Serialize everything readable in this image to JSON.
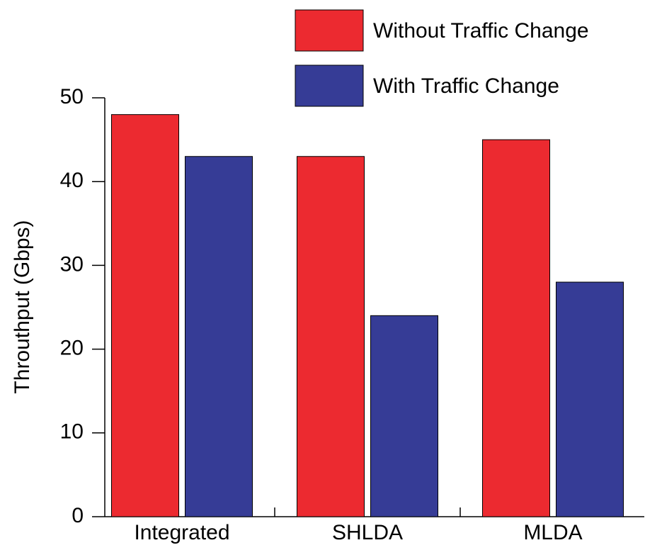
{
  "chart_data": {
    "type": "bar",
    "y_label": "Throuthput (Gbps)",
    "categories": [
      "Integrated",
      "SHLDA",
      "MLDA"
    ],
    "series": [
      {
        "name": "Without Traffic Change",
        "color": "#ec2a30",
        "values": [
          48,
          43,
          45
        ]
      },
      {
        "name": "With Traffic Change",
        "color": "#363c96",
        "values": [
          43,
          24,
          28
        ]
      }
    ],
    "ylim": [
      0,
      50
    ],
    "yticks": [
      0,
      10,
      20,
      30,
      40,
      50
    ],
    "legend": "top-right"
  }
}
